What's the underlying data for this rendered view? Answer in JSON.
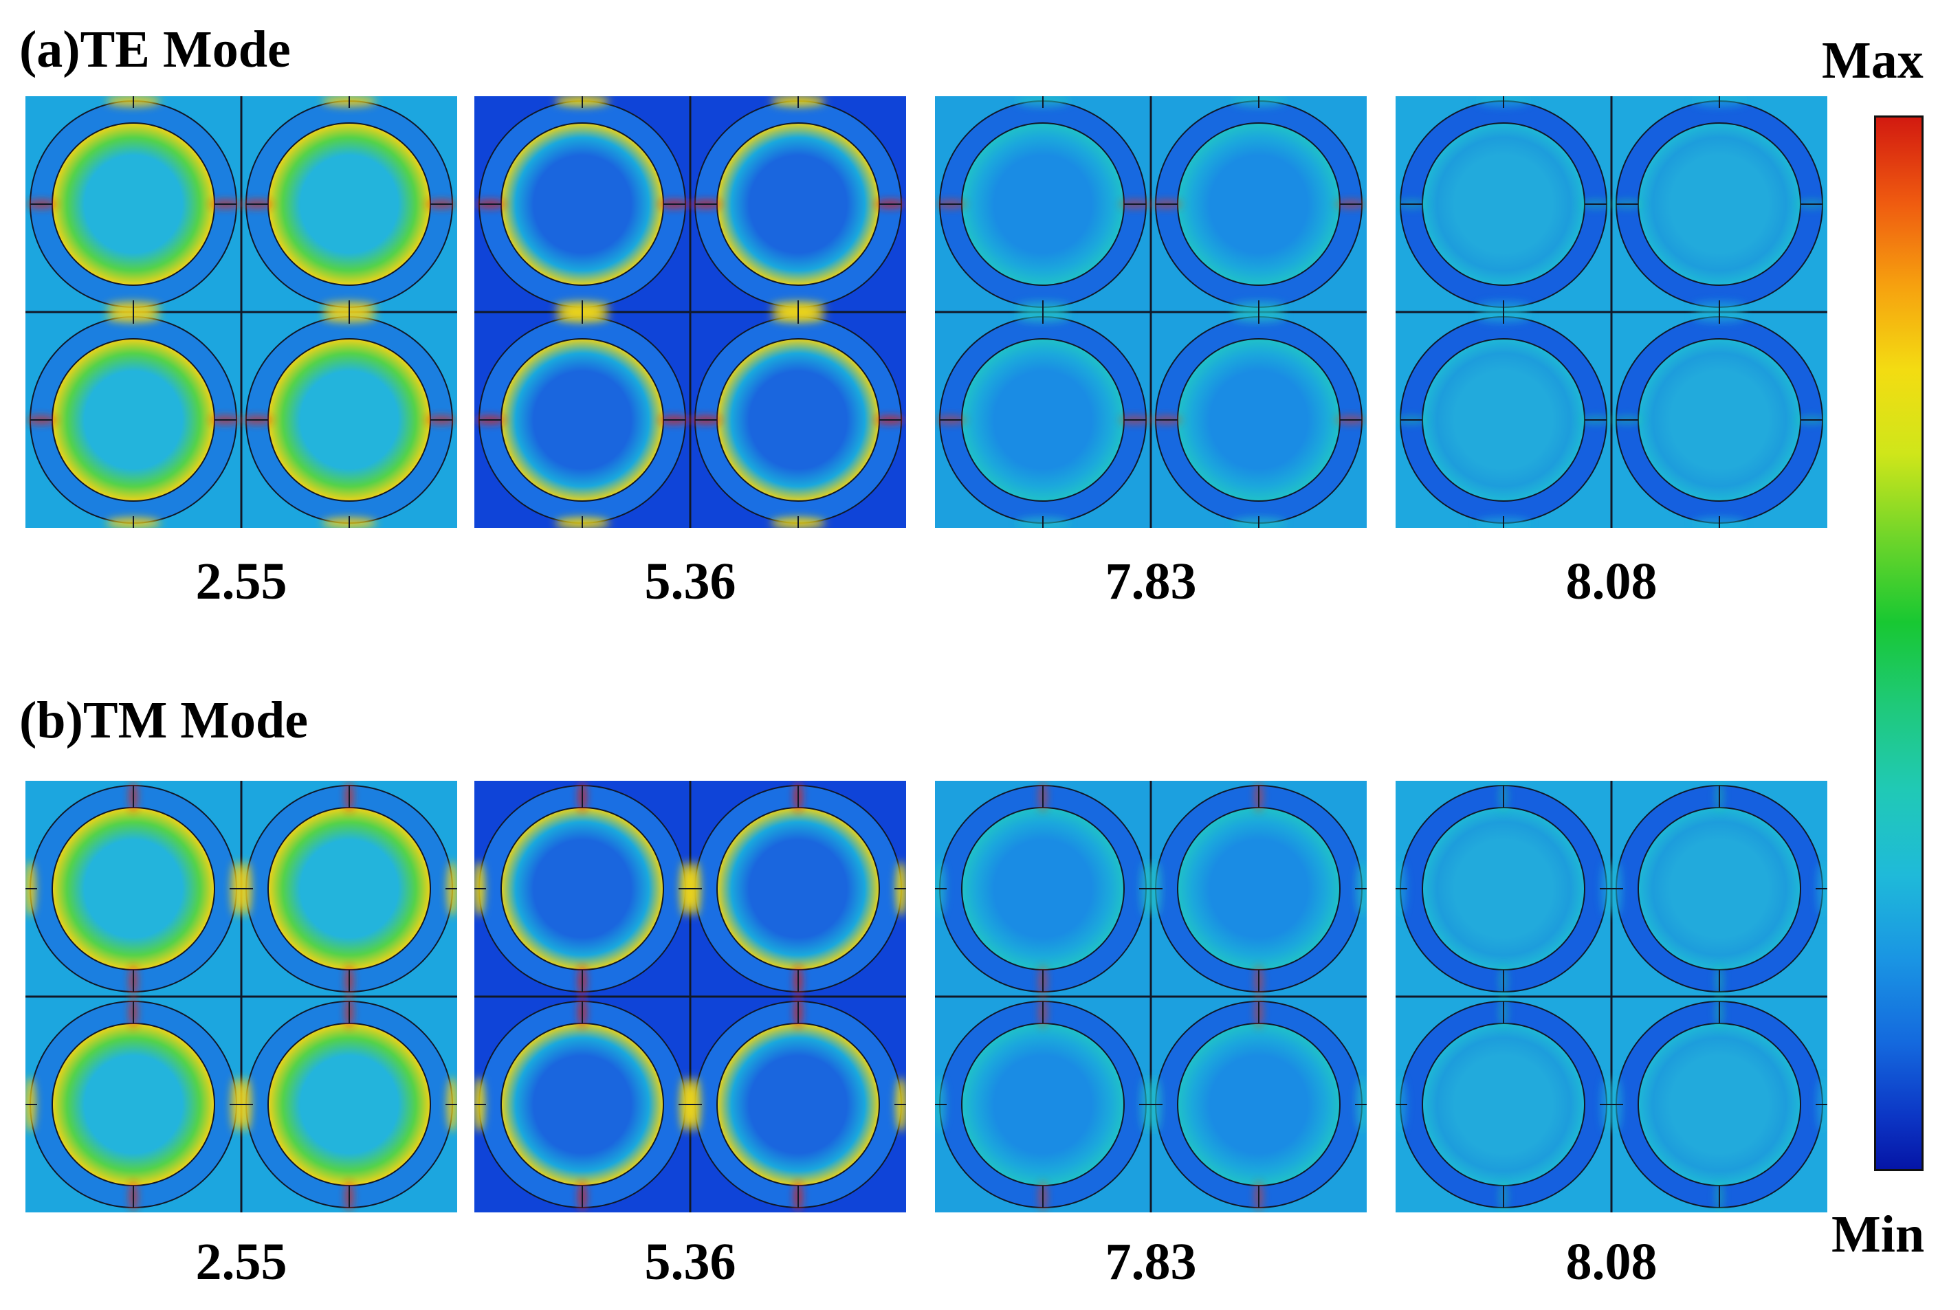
{
  "sections": [
    {
      "title": "(a)TE Mode",
      "panels": [
        {
          "value": "2.55",
          "style": "te1"
        },
        {
          "value": "5.36",
          "style": "te2"
        },
        {
          "value": "7.83",
          "style": "te3"
        },
        {
          "value": "8.08",
          "style": "te4"
        }
      ]
    },
    {
      "title": "(b)TM Mode",
      "panels": [
        {
          "value": "2.55",
          "style": "tm1"
        },
        {
          "value": "5.36",
          "style": "tm2"
        },
        {
          "value": "7.83",
          "style": "tm3"
        },
        {
          "value": "8.08",
          "style": "tm4"
        }
      ]
    }
  ],
  "colorbar": {
    "max_label": "Max",
    "min_label": "Min",
    "colors": [
      "#d21a10",
      "#f6a10f",
      "#f3dc12",
      "#18c832",
      "#20c9b6",
      "#1a95e3",
      "#0515a6"
    ]
  }
}
